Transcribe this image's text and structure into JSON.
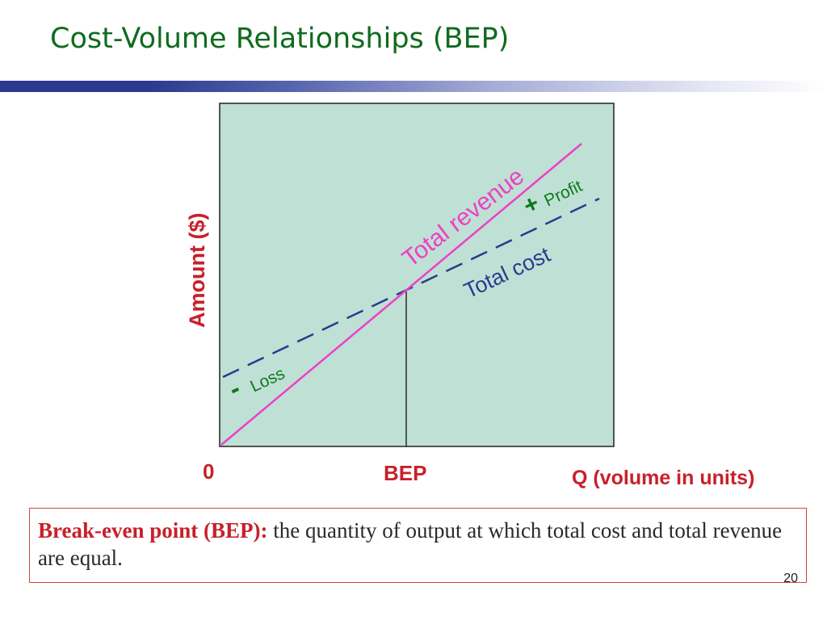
{
  "slide": {
    "title": "Cost-Volume Relationships (BEP)",
    "page_number": "20"
  },
  "colors": {
    "title": "#0f6b1e",
    "plot_background": "#bfe0d4",
    "total_revenue": "#ee3fc8",
    "total_cost": "#2b3a8f",
    "profit_loss": "#0d7a1a",
    "axis_labels": "#c8202a",
    "definition_term": "#c8202a"
  },
  "diagram": {
    "y_axis_label": "Amount ($)",
    "x_axis_label": "Q (volume in units)",
    "origin_label": "0",
    "bep_label": "BEP",
    "revenue_label": "Total revenue",
    "cost_label": "Total cost",
    "profit_sign": "+",
    "profit_label": "Profit",
    "loss_sign": "-",
    "loss_label": "Loss"
  },
  "definition": {
    "term": "Break-even point (BEP):",
    "text": " the quantity of output at which total cost and total revenue are equal."
  }
}
